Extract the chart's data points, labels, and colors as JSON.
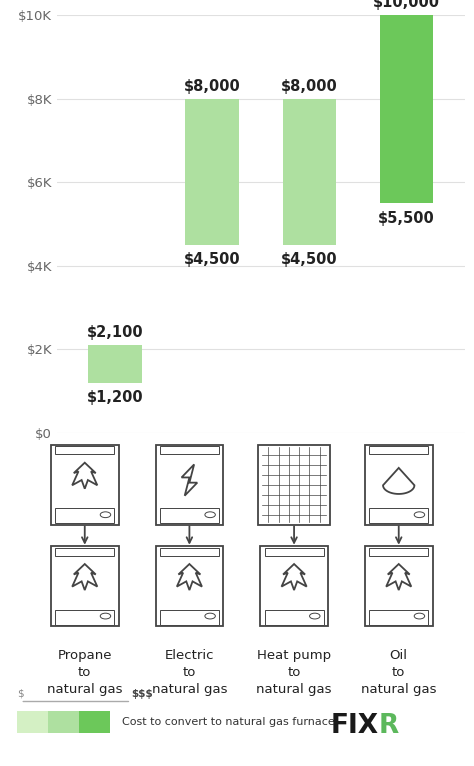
{
  "categories": [
    "Propane\nto\nnatural gas",
    "Electric\nto\nnatural gas",
    "Heat pump\nto\nnatural gas",
    "Oil\nto\nnatural gas"
  ],
  "min_values": [
    1200,
    4500,
    4500,
    5500
  ],
  "max_values": [
    2100,
    8000,
    8000,
    10000
  ],
  "min_labels": [
    "$1,200",
    "$4,500",
    "$4,500",
    "$5,500"
  ],
  "max_labels": [
    "$2,100",
    "$8,000",
    "$8,000",
    "$10,000"
  ],
  "bar_colors": [
    "#aee0a0",
    "#aee0a0",
    "#aee0a0",
    "#6cc85a"
  ],
  "bar_width": 0.55,
  "ylim": [
    0,
    10000
  ],
  "yticks": [
    0,
    2000,
    4000,
    6000,
    8000,
    10000
  ],
  "ytick_labels": [
    "$0",
    "$2K",
    "$4K",
    "$6K",
    "$8K",
    "$10K"
  ],
  "background_color": "#ffffff",
  "grid_color": "#e0e0e0",
  "text_color": "#222222",
  "icon_edge_color": "#444444",
  "label_texts": [
    "Propane\nto\nnatural gas",
    "Electric\nto\nnatural gas",
    "Heat pump\nto\nnatural gas",
    "Oil\nto\nnatural gas"
  ],
  "legend_text": "Cost to convert to natural gas furnace",
  "legend_colors": [
    "#d4f0c4",
    "#aee0a0",
    "#6cc85a"
  ],
  "tick_fontsize": 9.5,
  "bar_label_fontsize": 10.5,
  "label_fontsize": 9.5
}
